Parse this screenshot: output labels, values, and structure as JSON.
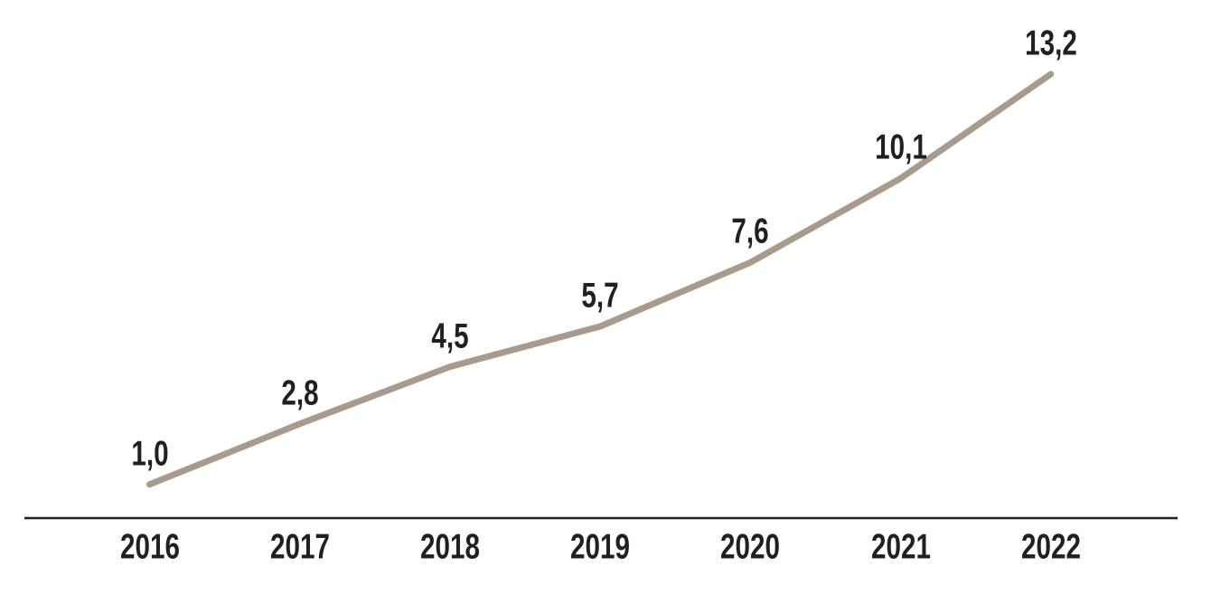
{
  "chart_data": {
    "type": "line",
    "categories": [
      "2016",
      "2017",
      "2018",
      "2019",
      "2020",
      "2021",
      "2022"
    ],
    "values": [
      1.0,
      2.8,
      4.5,
      5.7,
      7.6,
      10.1,
      13.2
    ],
    "value_labels": [
      "1,0",
      "2,8",
      "4,5",
      "5,7",
      "7,6",
      "10,1",
      "13,2"
    ],
    "title": "",
    "xlabel": "",
    "ylabel": "",
    "ylim": [
      0,
      13.2
    ],
    "grid": false,
    "legend": "none",
    "decimal_separator": ",",
    "colors": {
      "line": "#a89b8e",
      "label_text": "#231f20",
      "tick_text": "#231f20",
      "axis": "#231f20",
      "background": "#ffffff"
    }
  }
}
